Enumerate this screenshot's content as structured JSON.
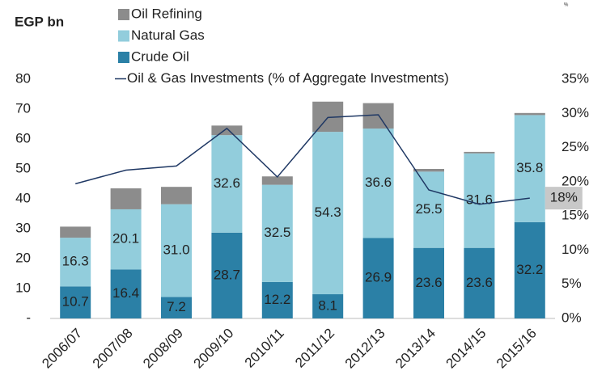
{
  "chart_data": {
    "type": "bar",
    "stacked": true,
    "y_label": "EGP bn",
    "annotation": "%",
    "categories": [
      "2006/07",
      "2007/08",
      "2008/09",
      "2009/10",
      "2010/11",
      "2011/12",
      "2012/13",
      "2013/14",
      "2014/15",
      "2015/16"
    ],
    "series": [
      {
        "name": "Crude Oil",
        "color": "#2b80a6",
        "values": [
          10.7,
          16.4,
          7.2,
          28.7,
          12.2,
          8.1,
          26.9,
          23.6,
          23.6,
          32.2
        ]
      },
      {
        "name": "Natural Gas",
        "color": "#92cddc",
        "values": [
          16.3,
          20.1,
          31.0,
          32.6,
          32.5,
          54.3,
          36.6,
          25.5,
          31.6,
          35.8
        ],
        "value_labels": [
          "16.3",
          "20.1",
          "31.0",
          "32.6",
          "32.5",
          "54.3",
          "36.6",
          "25.5",
          "31.6",
          "35.8"
        ]
      },
      {
        "name": "Oil Refining",
        "color": "#8c8c8c",
        "values": [
          3.7,
          7.0,
          5.8,
          3.2,
          2.8,
          10.1,
          8.5,
          0.9,
          0.5,
          0.7
        ]
      },
      {
        "name": "Oil & Gas Investments (% of Aggregate Investments)",
        "color": "#1f3864",
        "type": "line",
        "axis": "y2",
        "values": [
          19.7,
          21.7,
          22.3,
          27.8,
          20.7,
          29.4,
          29.8,
          18.8,
          16.7,
          17.6
        ],
        "value_labels": [
          null,
          null,
          null,
          null,
          null,
          null,
          null,
          null,
          null,
          "18%"
        ]
      }
    ],
    "ylim": [
      0,
      80
    ],
    "yticks": [
      {
        "value": 0,
        "label": "-"
      },
      10,
      20,
      30,
      40,
      50,
      60,
      70,
      80
    ],
    "y2lim": [
      0,
      35
    ],
    "y2ticks": [
      {
        "value": 0,
        "label": "0%"
      },
      {
        "value": 5,
        "label": "5%"
      },
      {
        "value": 10,
        "label": "10%"
      },
      {
        "value": 15,
        "label": "15%"
      },
      {
        "value": 20,
        "label": "20%"
      },
      {
        "value": 25,
        "label": "25%"
      },
      {
        "value": 30,
        "label": "30%"
      },
      {
        "value": 35,
        "label": "35%"
      }
    ],
    "grid": false
  }
}
